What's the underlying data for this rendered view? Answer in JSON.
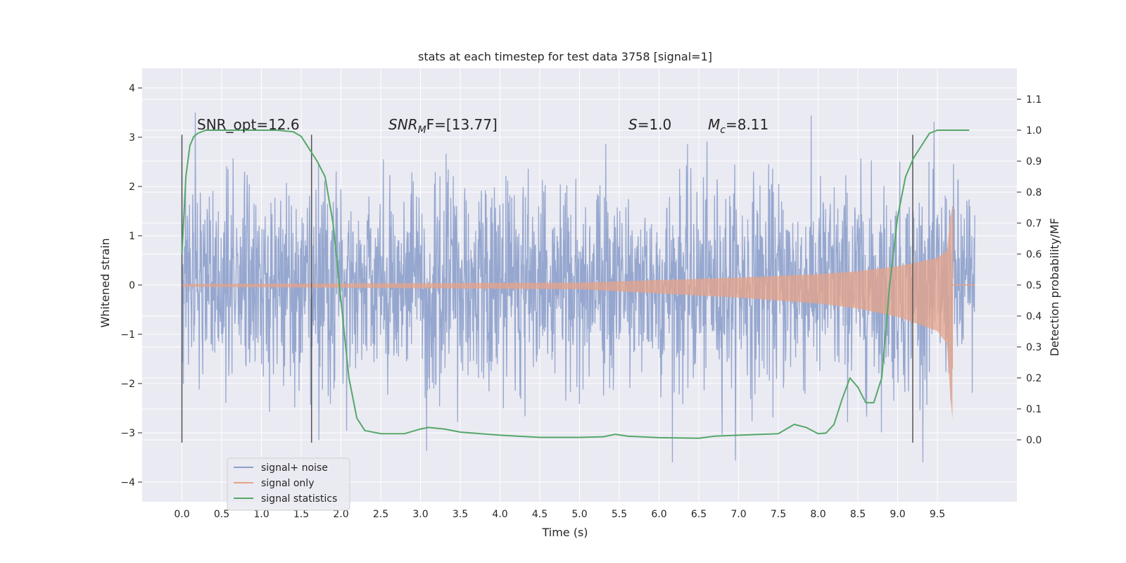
{
  "chart_data": {
    "type": "line",
    "title": "stats at each timestep for test data 3758 [signal=1]",
    "xlabel": "Time (s)",
    "ylabel": "Whitened strain",
    "ylabel_right": "Detection probability/MF",
    "xlim": [
      -0.5,
      10.5
    ],
    "ylim": [
      -4.4,
      4.4
    ],
    "ylim_right": [
      -0.2,
      1.2
    ],
    "xticks": [
      "0.0",
      "0.5",
      "1.0",
      "1.5",
      "2.0",
      "2.5",
      "3.0",
      "3.5",
      "4.0",
      "4.5",
      "5.0",
      "5.5",
      "6.0",
      "6.5",
      "7.0",
      "7.5",
      "8.0",
      "8.5",
      "9.0",
      "9.5"
    ],
    "yticks": [
      "4",
      "3",
      "2",
      "1",
      "0",
      "−1",
      "−2",
      "−3",
      "−4"
    ],
    "yticks_right": [
      "1.1",
      "1.0",
      "0.9",
      "0.8",
      "0.7",
      "0.6",
      "0.5",
      "0.4",
      "0.3",
      "0.2",
      "0.1",
      "0.0"
    ],
    "grid": true,
    "legend_position": "lower-left",
    "annotations": {
      "snr_opt": "SNR_opt=12.6",
      "snr_mf_base": "SNR",
      "snr_mf_sub": "M",
      "snr_mf_rest": "F=[13.77]",
      "s_var": "S",
      "s_rest": "=1.0",
      "mc_var": "M",
      "mc_sub": "c",
      "mc_rest": "=8.11"
    },
    "vertical_lines_x": [
      0.0,
      1.63,
      9.19
    ],
    "vertical_lines_yrange": [
      -3.2,
      3.05
    ],
    "series": [
      {
        "name": "signal+ noise",
        "color": "#8da0cb",
        "note_range": [
          0.0,
          9.97
        ],
        "typical_envelope": [
          -2.2,
          2.4
        ],
        "peak_max": 3.9,
        "peak_min": -3.6
      },
      {
        "name": "signal only",
        "color": "#e5a388",
        "t_merge": 9.69,
        "envelope": [
          [
            0.0,
            0.02
          ],
          [
            5.0,
            0.05
          ],
          [
            6.0,
            0.1
          ],
          [
            7.0,
            0.15
          ],
          [
            8.0,
            0.22
          ],
          [
            8.5,
            0.28
          ],
          [
            9.0,
            0.38
          ],
          [
            9.3,
            0.48
          ],
          [
            9.5,
            0.55
          ],
          [
            9.62,
            0.7
          ],
          [
            9.68,
            1.6
          ]
        ]
      },
      {
        "name": "signal statistics",
        "color": "#55a868",
        "axis": "right",
        "x": [
          0.0,
          0.05,
          0.1,
          0.15,
          0.2,
          0.3,
          0.5,
          0.8,
          1.0,
          1.2,
          1.4,
          1.5,
          1.6,
          1.7,
          1.8,
          1.9,
          2.0,
          2.1,
          2.2,
          2.3,
          2.5,
          2.8,
          3.0,
          3.1,
          3.3,
          3.5,
          4.0,
          4.5,
          5.0,
          5.3,
          5.45,
          5.6,
          6.0,
          6.5,
          6.7,
          7.0,
          7.5,
          7.7,
          7.85,
          8.0,
          8.1,
          8.2,
          8.3,
          8.4,
          8.5,
          8.6,
          8.7,
          8.8,
          8.9,
          9.0,
          9.1,
          9.2,
          9.3,
          9.4,
          9.5,
          9.6,
          9.7,
          9.9
        ],
        "values": [
          0.6,
          0.85,
          0.95,
          0.98,
          0.99,
          1.0,
          1.0,
          1.0,
          1.0,
          1.0,
          0.995,
          0.98,
          0.94,
          0.9,
          0.85,
          0.7,
          0.45,
          0.2,
          0.07,
          0.03,
          0.02,
          0.02,
          0.035,
          0.04,
          0.035,
          0.025,
          0.015,
          0.008,
          0.008,
          0.01,
          0.018,
          0.012,
          0.007,
          0.005,
          0.012,
          0.015,
          0.02,
          0.05,
          0.04,
          0.02,
          0.022,
          0.05,
          0.13,
          0.2,
          0.17,
          0.12,
          0.12,
          0.2,
          0.5,
          0.72,
          0.85,
          0.91,
          0.95,
          0.99,
          1.0,
          1.0,
          1.0,
          1.0
        ]
      }
    ]
  }
}
